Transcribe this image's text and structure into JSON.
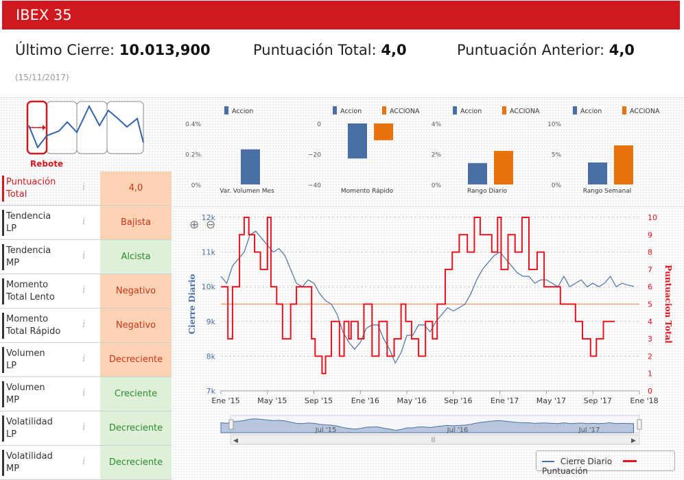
{
  "header": {
    "title": "IBEX 35"
  },
  "stats": {
    "last_close_label": "Último Cierre:",
    "last_close_value": "10.013,900",
    "total_score_label": "Puntuación Total:",
    "total_score_value": "4,0",
    "prev_score_label": "Puntuación Anterior:",
    "prev_score_value": "4,0",
    "date": "(15/11/2017)"
  },
  "phase": {
    "label": "Rebote"
  },
  "rows": [
    {
      "label_1": "Puntuación",
      "label_2": "Total",
      "value": "4,0",
      "tone": "neg"
    },
    {
      "label_1": "Tendencia",
      "label_2": "LP",
      "value": "Bajista",
      "tone": "neg"
    },
    {
      "label_1": "Tendencia",
      "label_2": "MP",
      "value": "Alcista",
      "tone": "pos"
    },
    {
      "label_1": "Momento",
      "label_2": "Total Lento",
      "value": "Negativo",
      "tone": "neg"
    },
    {
      "label_1": "Momento",
      "label_2": "Total Rápido",
      "value": "Negativo",
      "tone": "neg"
    },
    {
      "label_1": "Volumen",
      "label_2": "LP",
      "value": "Decreciente",
      "tone": "neg"
    },
    {
      "label_1": "Volumen",
      "label_2": "MP",
      "value": "Creciente",
      "tone": "pos"
    },
    {
      "label_1": "Volatilidad",
      "label_2": "LP",
      "value": "Decreciente",
      "tone": "pos"
    },
    {
      "label_1": "Volatilidad",
      "label_2": "MP",
      "value": "Decreciente",
      "tone": "pos"
    }
  ],
  "info_icon": "i",
  "colors": {
    "accent": "#d0181f",
    "accion": "#4a6fa5",
    "acciona": "#e8730c",
    "cierre": "#4a6fa5",
    "puntuacion": "#e8101a"
  },
  "chart_data": [
    {
      "type": "bar",
      "title": "",
      "xlabel": "Var. Volumen Mes",
      "legend": [
        "Accion"
      ],
      "yticks": [
        "0.4%",
        "0.2%",
        "0%"
      ],
      "ylim": [
        0,
        0.4
      ],
      "series": [
        {
          "name": "Accion",
          "values": [
            0.23
          ]
        }
      ]
    },
    {
      "type": "bar",
      "xlabel": "Momento Rápido",
      "legend": [
        "Accion",
        "ACCIONA"
      ],
      "yticks": [
        "0",
        "−20",
        "−40"
      ],
      "ylim": [
        -40,
        0
      ],
      "series": [
        {
          "name": "Accion",
          "values": [
            -23
          ]
        },
        {
          "name": "ACCIONA",
          "values": [
            -11
          ]
        }
      ]
    },
    {
      "type": "bar",
      "xlabel": "Rango Diario",
      "legend": [
        "Accion",
        "ACCIONA"
      ],
      "yticks": [
        "4%",
        "2%",
        "0%"
      ],
      "ylim": [
        0,
        4
      ],
      "series": [
        {
          "name": "Accion",
          "values": [
            1.4
          ]
        },
        {
          "name": "ACCIONA",
          "values": [
            2.2
          ]
        }
      ]
    },
    {
      "type": "bar",
      "xlabel": "Rango Semanal",
      "legend": [
        "Accion",
        "ACCIONA"
      ],
      "yticks": [
        "10%",
        "5%",
        "0%"
      ],
      "ylim": [
        0,
        10
      ],
      "series": [
        {
          "name": "Accion",
          "values": [
            3.6
          ]
        },
        {
          "name": "ACCIONA",
          "values": [
            6.4
          ]
        }
      ]
    },
    {
      "type": "line",
      "ylabel_left": "Cierre Diario",
      "ylabel_right": "Puntuacion Total",
      "x_ticks": [
        "Ene '15",
        "May '15",
        "Sep '15",
        "Ene '16",
        "May '16",
        "Sep '16",
        "Ene '17",
        "May '17",
        "Sep '17",
        "Ene '18"
      ],
      "y_left_ticks": [
        "12k",
        "11k",
        "10k",
        "9k",
        "8k",
        "7k"
      ],
      "y_left_range": [
        7000,
        12000
      ],
      "y_right_ticks": [
        "10",
        "9",
        "8",
        "7",
        "6",
        "5",
        "4",
        "3",
        "2",
        "1",
        "0"
      ],
      "y_right_range": [
        0,
        10
      ],
      "reference_line": 5,
      "navigator_labels": [
        "Jul '15",
        "Jul '16",
        "Jul '17"
      ],
      "series": [
        {
          "name": "Cierre Diario",
          "axis": "left",
          "x": [
            0,
            0.5,
            1,
            1.5,
            2,
            2.5,
            3,
            3.5,
            4,
            4.5,
            5,
            5.5,
            6,
            6.5,
            7,
            7.5,
            8,
            8.5,
            9,
            9.5,
            10,
            10.5,
            11,
            11.5,
            12,
            12.5,
            13,
            13.5,
            14,
            14.5,
            15,
            15.5,
            16,
            16.5,
            17,
            17.5,
            18,
            18.5,
            19,
            19.5,
            20,
            20.5,
            21,
            21.5,
            22,
            22.5,
            23,
            23.5,
            24,
            24.5,
            25,
            25.5,
            26,
            26.5,
            27,
            27.5,
            28,
            28.5,
            29,
            29.5,
            30,
            30.5,
            31,
            31.5,
            32,
            32.5,
            33,
            33.5,
            34,
            34.5,
            35,
            35.5
          ],
          "values": [
            10300,
            10100,
            10600,
            10800,
            11000,
            11500,
            11600,
            11400,
            11200,
            11000,
            11100,
            10900,
            10500,
            10100,
            10000,
            10200,
            10100,
            9800,
            9600,
            9500,
            9200,
            8700,
            8400,
            8200,
            8400,
            8800,
            8900,
            8900,
            8500,
            8200,
            7800,
            8100,
            8600,
            8600,
            8900,
            8900,
            8700,
            9000,
            9200,
            9400,
            9300,
            9400,
            9500,
            9800,
            10200,
            10500,
            10700,
            10900,
            11000,
            10800,
            10600,
            10400,
            10300,
            10300,
            10100,
            10200,
            10200,
            10100,
            10000,
            10300,
            10000,
            10100,
            10200,
            10000,
            10100,
            10000,
            10100,
            10300,
            10000,
            10100,
            10050,
            10014
          ]
        },
        {
          "name": "Puntuación",
          "axis": "right",
          "x": [
            0,
            0.6,
            1,
            1.6,
            2,
            2.4,
            2.9,
            3.4,
            4,
            4.3,
            4.8,
            5.3,
            6,
            6.5,
            7.2,
            7.8,
            8.1,
            8.7,
            9,
            9.5,
            10.2,
            10.6,
            11,
            11.2,
            11.8,
            12.3,
            13,
            13.6,
            14.3,
            14.9,
            15.5,
            15.9,
            16.4,
            17,
            17.6,
            18.2,
            18.6,
            19.3,
            19.9,
            20.5,
            21.2,
            21.8,
            22.3,
            22.9,
            23.3,
            23.8,
            24.1,
            24.7,
            25.3,
            25.9,
            26.5,
            27.2,
            27.8,
            28.5,
            29.2,
            29.9,
            30.5,
            31.1,
            31.8,
            32.3,
            32.9,
            33.4,
            33.9
          ],
          "values": [
            6,
            3,
            6,
            9,
            10,
            9,
            8,
            7,
            10,
            6,
            5,
            3,
            5,
            6,
            6,
            3,
            2,
            1,
            2,
            4,
            2,
            4,
            3,
            4,
            3,
            5,
            2,
            4,
            2,
            3,
            5,
            4,
            3,
            2,
            4,
            3,
            5,
            7,
            8,
            9,
            8,
            10,
            9,
            9,
            8,
            10,
            7,
            9,
            8,
            10,
            7,
            8,
            6,
            6,
            5,
            5,
            4,
            3,
            2,
            3,
            4,
            4,
            4
          ]
        }
      ]
    }
  ],
  "legend": {
    "cierre": "Cierre Diario",
    "puntuacion": "Puntuación"
  }
}
